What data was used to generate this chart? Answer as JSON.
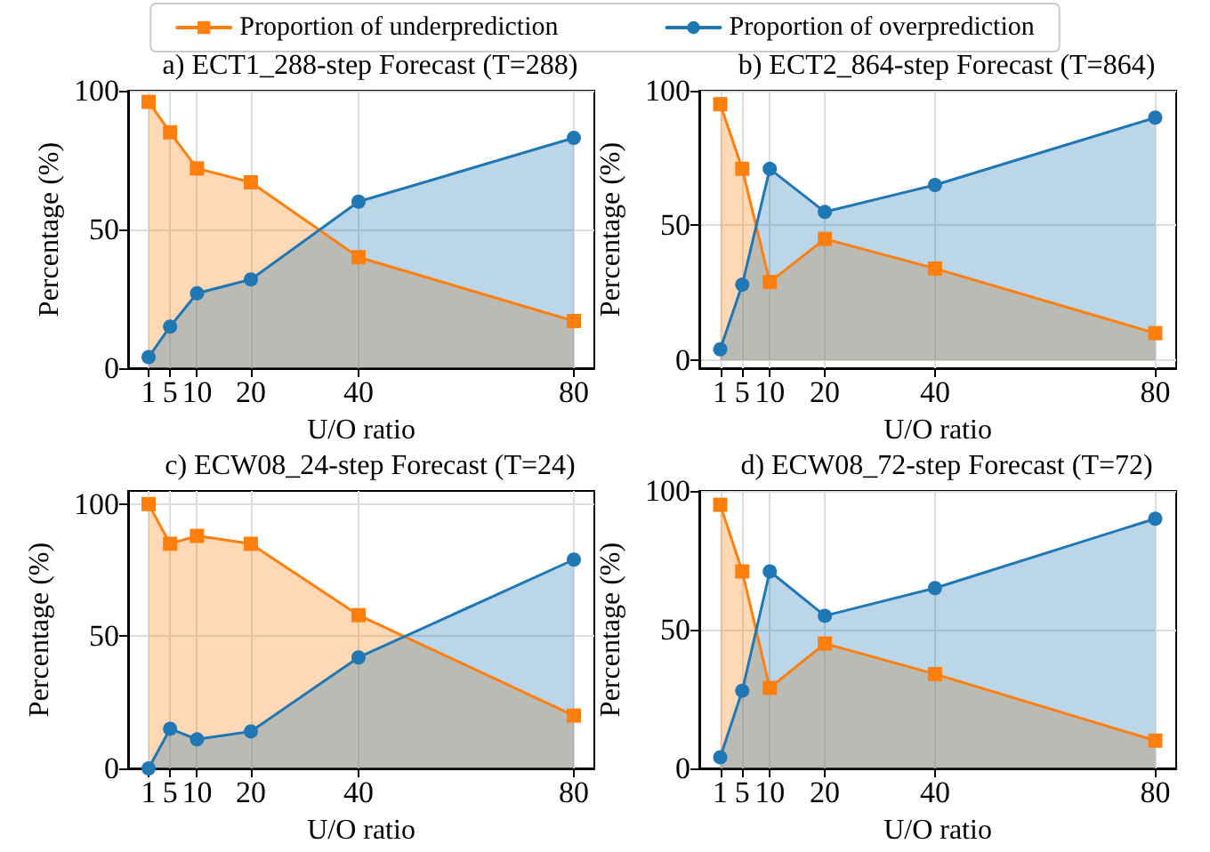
{
  "chart_data": [
    {
      "type": "area",
      "title": "a) ECT1_288-step Forecast (T=288)",
      "xlabel": "U/O ratio",
      "ylabel": "Percentage (%)",
      "x": [
        1,
        5,
        10,
        20,
        40,
        80
      ],
      "xlim": [
        -2.8,
        83.8
      ],
      "xticks": [
        1,
        5,
        10,
        20,
        40,
        80
      ],
      "ylim": [
        0,
        100
      ],
      "yticks": [
        0,
        50,
        100
      ],
      "grid": true,
      "legend": "top",
      "series": [
        {
          "name": "Proportion of underprediction",
          "color": "#ff7f0e",
          "marker": "square",
          "values": [
            96,
            85,
            72,
            67,
            40,
            17
          ]
        },
        {
          "name": "Proportion of overprediction",
          "color": "#1f77b4",
          "marker": "circle",
          "values": [
            4,
            15,
            27,
            32,
            60,
            83
          ]
        }
      ]
    },
    {
      "type": "area",
      "title": "b) ECT2_864-step Forecast (T=864)",
      "xlabel": "U/O ratio",
      "ylabel": "Percentage (%)",
      "x": [
        1,
        5,
        10,
        20,
        40,
        80
      ],
      "xlim": [
        -2.8,
        83.8
      ],
      "xticks": [
        1,
        5,
        10,
        20,
        40,
        80
      ],
      "ylim": [
        -3,
        100
      ],
      "yticks": [
        0,
        50,
        100
      ],
      "grid": true,
      "series": [
        {
          "color": "#ff7f0e",
          "marker": "square",
          "values": [
            95,
            71,
            29,
            45,
            34,
            10
          ]
        },
        {
          "color": "#1f77b4",
          "marker": "circle",
          "values": [
            4,
            28,
            71,
            55,
            65,
            90
          ]
        }
      ]
    },
    {
      "type": "area",
      "title": "c) ECW08_24-step Forecast (T=24)",
      "xlabel": "U/O ratio",
      "ylabel": "Percentage (%)",
      "x": [
        1,
        5,
        10,
        20,
        40,
        80
      ],
      "xlim": [
        -2.8,
        83.8
      ],
      "xticks": [
        1,
        5,
        10,
        20,
        40,
        80
      ],
      "ylim": [
        0,
        105
      ],
      "yticks": [
        0,
        50,
        100
      ],
      "grid": true,
      "series": [
        {
          "color": "#ff7f0e",
          "marker": "square",
          "values": [
            100,
            85,
            88,
            85,
            58,
            20
          ]
        },
        {
          "color": "#1f77b4",
          "marker": "circle",
          "values": [
            0,
            15,
            11,
            14,
            42,
            79
          ]
        }
      ]
    },
    {
      "type": "area",
      "title": "d) ECW08_72-step Forecast (T=72)",
      "xlabel": "U/O ratio",
      "ylabel": "Percentage (%)",
      "x": [
        1,
        5,
        10,
        20,
        40,
        80
      ],
      "xlim": [
        -2.8,
        83.8
      ],
      "xticks": [
        1,
        5,
        10,
        20,
        40,
        80
      ],
      "ylim": [
        0,
        100
      ],
      "yticks": [
        0,
        50,
        100
      ],
      "grid": true,
      "series": [
        {
          "color": "#ff7f0e",
          "marker": "square",
          "values": [
            95,
            71,
            29,
            45,
            34,
            10
          ]
        },
        {
          "color": "#1f77b4",
          "marker": "circle",
          "values": [
            4,
            28,
            71,
            55,
            65,
            90
          ]
        }
      ]
    }
  ]
}
